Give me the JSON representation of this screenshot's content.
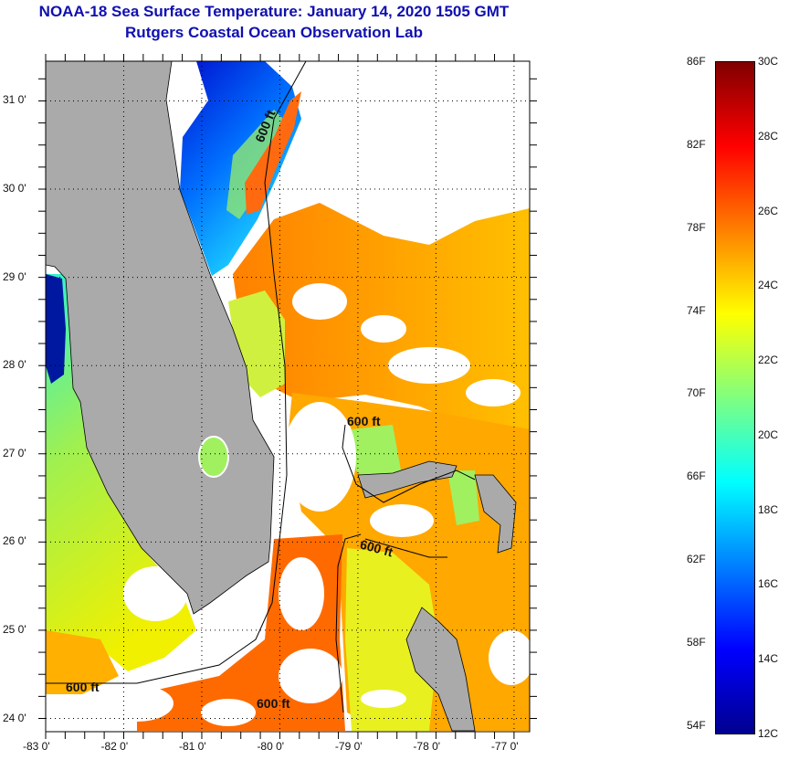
{
  "header": {
    "title": "NOAA-18 Sea Surface Temperature:  January 14, 2020 1505 GMT",
    "subtitle": "Rutgers Coastal Ocean Observation Lab"
  },
  "map": {
    "lat_labels": [
      "31 0'",
      "30 0'",
      "29 0'",
      "28 0'",
      "27 0'",
      "26 0'",
      "25 0'",
      "24 0'"
    ],
    "lat_values": [
      31,
      30,
      29,
      28,
      27,
      26,
      25,
      24
    ],
    "lon_labels": [
      "-83 0'",
      "-82 0'",
      "-81 0'",
      "-80 0'",
      "-79 0'",
      "-78 0'",
      "-77 0'"
    ],
    "lon_values": [
      -83,
      -82,
      -81,
      -80,
      -79,
      -78,
      -77
    ],
    "lat_range": [
      23.85,
      31.45
    ],
    "lon_range": [
      -83,
      -76.8
    ],
    "contour_label": "600 ft",
    "land_color": "#aaaaaa",
    "cloud_color": "#ffffff"
  },
  "colorbar": {
    "celsius_labels": [
      "30C",
      "28C",
      "26C",
      "24C",
      "22C",
      "20C",
      "18C",
      "16C",
      "14C",
      "12C"
    ],
    "celsius_values": [
      30,
      28,
      26,
      24,
      22,
      20,
      18,
      16,
      14,
      12
    ],
    "fahrenheit_labels": [
      "86F",
      "82F",
      "78F",
      "74F",
      "70F",
      "66F",
      "62F",
      "58F",
      "54F"
    ],
    "fahrenheit_values": [
      86,
      82,
      78,
      74,
      70,
      66,
      62,
      58,
      54
    ],
    "range_c": [
      12,
      30
    ]
  }
}
